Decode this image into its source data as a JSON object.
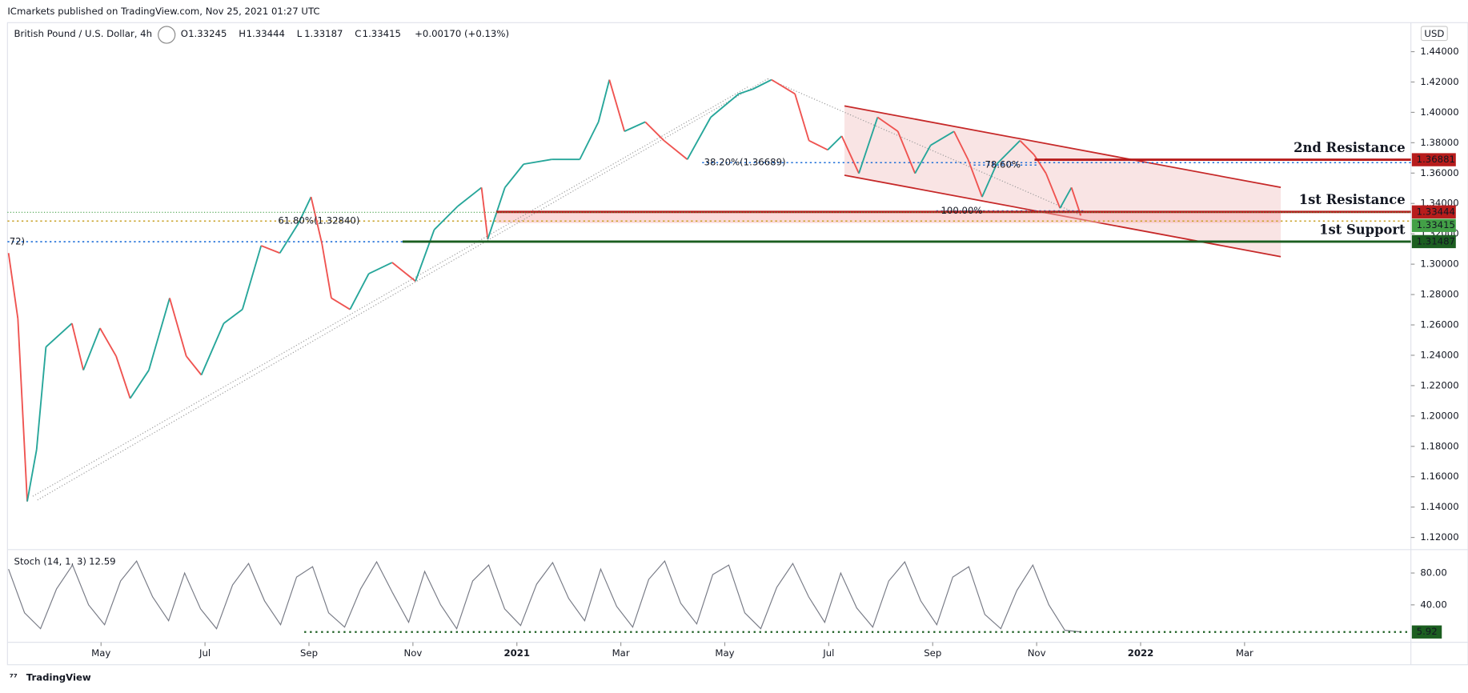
{
  "chart_data": {
    "type": "line",
    "publisher": "ICmarkets published on TradingView.com, Nov 25, 2021 01:27 UTC",
    "title": "British Pound / U.S. Dollar, 4h",
    "ohlc": [
      {
        "label": "O",
        "value": 1.33245
      },
      {
        "label": "H",
        "value": 1.33444
      },
      {
        "label": "L",
        "value": 1.33187
      },
      {
        "label": "C",
        "value": 1.33415
      }
    ],
    "change": "+0.00170 (+0.13%)",
    "currency": "USD",
    "xlim": [
      2.2,
      29.2
    ],
    "xticks": [
      {
        "value": 4,
        "label": "May"
      },
      {
        "value": 6,
        "label": "Jul"
      },
      {
        "value": 8,
        "label": "Sep"
      },
      {
        "value": 10,
        "label": "Nov"
      },
      {
        "value": 12,
        "label": "2021"
      },
      {
        "value": 14,
        "label": "Mar"
      },
      {
        "value": 16,
        "label": "May"
      },
      {
        "value": 18,
        "label": "Jul"
      },
      {
        "value": 20,
        "label": "Sep"
      },
      {
        "value": 22,
        "label": "Nov"
      },
      {
        "value": 24,
        "label": "2022"
      },
      {
        "value": 26,
        "label": "Mar"
      }
    ],
    "ylim": [
      1.1126,
      1.4591
    ],
    "yticks": [
      {
        "value": 1.12,
        "label": "1.12000"
      },
      {
        "value": 1.14,
        "label": "1.14000"
      },
      {
        "value": 1.16,
        "label": "1.16000"
      },
      {
        "value": 1.18,
        "label": "1.18000"
      },
      {
        "value": 1.2,
        "label": "1.20000"
      },
      {
        "value": 1.22,
        "label": "1.22000"
      },
      {
        "value": 1.24,
        "label": "1.24000"
      },
      {
        "value": 1.26,
        "label": "1.26000"
      },
      {
        "value": 1.28,
        "label": "1.28000"
      },
      {
        "value": 1.3,
        "label": "1.30000"
      },
      {
        "value": 1.32,
        "label": "1.32000"
      },
      {
        "value": 1.34,
        "label": "1.34000"
      },
      {
        "value": 1.36,
        "label": "1.36000"
      },
      {
        "value": 1.38,
        "label": "1.38000"
      },
      {
        "value": 1.4,
        "label": "1.40000"
      },
      {
        "value": 1.42,
        "label": "1.42000"
      },
      {
        "value": 1.44,
        "label": "1.44000"
      }
    ],
    "x": [
      2.22,
      2.4,
      2.58,
      2.76,
      2.94,
      3.44,
      3.66,
      3.98,
      4.29,
      4.56,
      4.92,
      5.32,
      5.64,
      5.93,
      6.36,
      6.72,
      7.08,
      7.44,
      7.8,
      8.04,
      8.25,
      8.43,
      8.79,
      9.15,
      9.6,
      10.05,
      10.41,
      10.86,
      11.32,
      11.44,
      11.77,
      12.13,
      12.67,
      13.21,
      13.57,
      13.78,
      14.07,
      14.47,
      14.83,
      15.28,
      15.73,
      16.27,
      16.54,
      16.9,
      17.35,
      17.62,
      17.98,
      18.25,
      18.58,
      18.94,
      19.33,
      19.66,
      19.96,
      20.41,
      20.68,
      20.95,
      21.23,
      21.68,
      21.95,
      22.18,
      22.45,
      22.67,
      22.85
    ],
    "series": [
      {
        "up_color": "#26a69a",
        "down_color": "#ef5350",
        "values": [
          1.3073,
          1.2641,
          1.1437,
          1.1778,
          1.2455,
          1.261,
          1.2302,
          1.2579,
          1.2394,
          1.2116,
          1.2302,
          1.2777,
          1.2394,
          1.227,
          1.261,
          1.2702,
          1.3122,
          1.3073,
          1.327,
          1.3443,
          1.3135,
          1.2777,
          1.2702,
          1.2937,
          1.3011,
          1.2888,
          1.3227,
          1.3381,
          1.3505,
          1.3165,
          1.3505,
          1.3659,
          1.369,
          1.369,
          1.3937,
          1.4215,
          1.3875,
          1.3937,
          1.3814,
          1.369,
          1.3968,
          1.4122,
          1.4153,
          1.4215,
          1.4122,
          1.3814,
          1.3753,
          1.3844,
          1.3598,
          1.3968,
          1.3875,
          1.3598,
          1.3783,
          1.3875,
          1.369,
          1.3443,
          1.3659,
          1.3814,
          1.3721,
          1.3598,
          1.3369,
          1.3505,
          1.332
        ]
      }
    ],
    "levels": [
      {
        "name": "2nd Resistance",
        "value": 1.36881,
        "color": "#b71c1c"
      },
      {
        "name": "1st Resistance",
        "value": 1.33444,
        "color": "#b71c1c"
      },
      {
        "name": "1st Support",
        "value": 1.31487,
        "color": "#1b5e20"
      }
    ],
    "last_color": "#43a047",
    "fibs": [
      {
        "label": "38.20%(1.36689)",
        "value": 1.36689,
        "color": "#1e6fd9"
      },
      {
        "label": "61.80%(1.32840)",
        "value": 1.3284,
        "color": "#c9a227"
      },
      {
        "label": "78.60%",
        "value": 1.3653,
        "color": "#1e6fd9"
      },
      {
        "label": "100.00%",
        "value": 1.3351,
        "color": "#1e6fd9"
      },
      {
        "label": "72)",
        "value": 1.3148,
        "color": "#1e6fd9"
      }
    ],
    "stoch": {
      "title": "Stoch (14, 1, 3)",
      "current": 12.59,
      "last": 5.92,
      "color": "#787b86",
      "ylim": [
        -7,
        109.4
      ],
      "yticks": [
        {
          "value": 80,
          "label": "80.00"
        },
        {
          "value": 40,
          "label": "40.00"
        }
      ],
      "values": [
        85,
        30,
        10,
        60,
        90,
        40,
        15,
        70,
        95,
        50,
        20,
        80,
        35,
        10,
        65,
        92,
        45,
        15,
        75,
        88,
        30,
        12,
        60,
        94,
        55,
        18,
        82,
        40,
        10,
        70,
        90,
        35,
        14,
        66,
        93,
        48,
        20,
        85,
        38,
        12,
        72,
        95,
        42,
        16,
        78,
        90,
        30,
        10,
        62,
        92,
        50,
        18,
        80,
        36,
        12,
        70,
        94,
        45,
        15,
        75,
        88,
        28,
        10,
        58,
        90,
        40,
        8,
        6
      ]
    }
  },
  "footer": "TradingView"
}
